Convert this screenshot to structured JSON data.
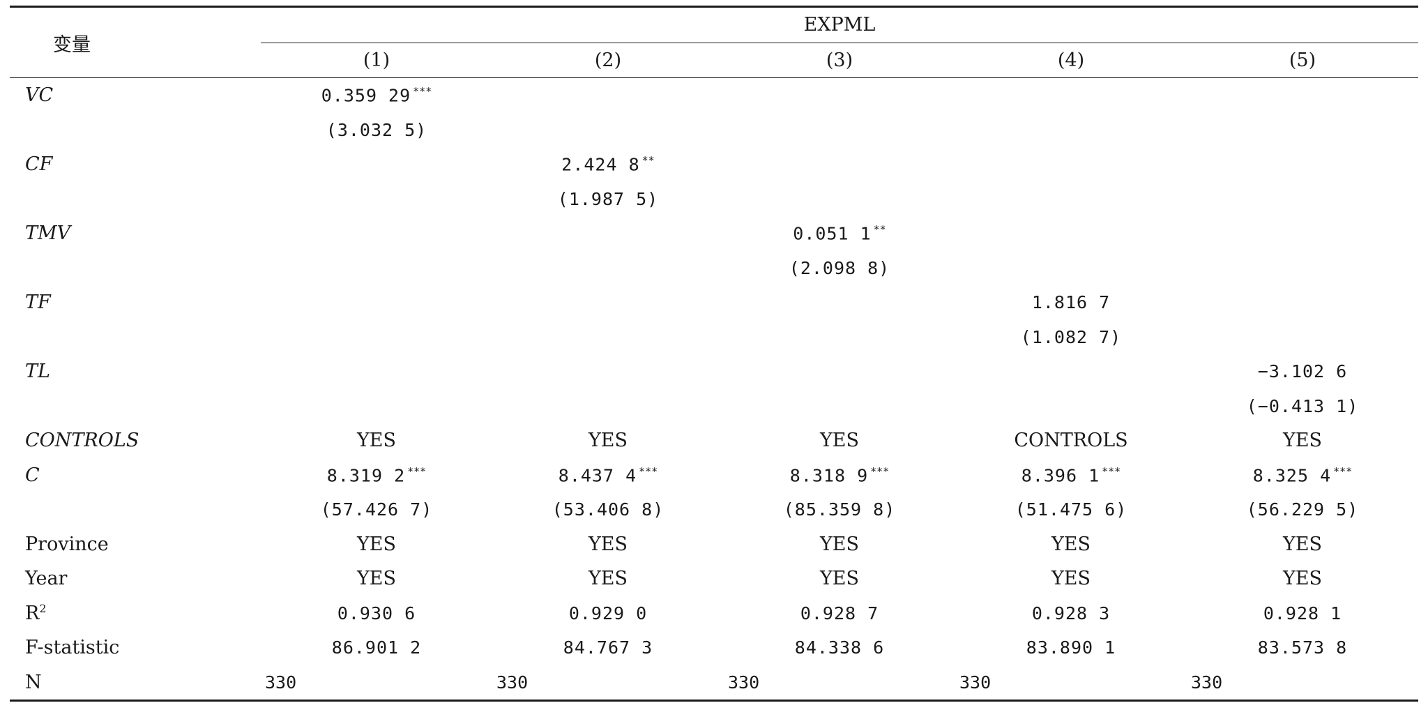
{
  "table": {
    "var_header": "变量",
    "group_header": "EXPML",
    "model_headers": [
      "(1)",
      "(2)",
      "(3)",
      "(4)",
      "(5)"
    ],
    "rows": [
      {
        "label": "VC",
        "italic": true,
        "cells": [
          "0.359 29",
          "",
          "",
          "",
          ""
        ],
        "stars": [
          "***",
          "",
          "",
          "",
          ""
        ],
        "kind": "num"
      },
      {
        "label": "",
        "italic": false,
        "cells": [
          "(3.032 5)",
          "",
          "",
          "",
          ""
        ],
        "stars": [
          "",
          "",
          "",
          "",
          ""
        ],
        "kind": "num"
      },
      {
        "label": "CF",
        "italic": true,
        "cells": [
          "",
          "2.424 8",
          "",
          "",
          ""
        ],
        "stars": [
          "",
          "**",
          "",
          "",
          ""
        ],
        "kind": "num"
      },
      {
        "label": "",
        "italic": false,
        "cells": [
          "",
          "(1.987 5)",
          "",
          "",
          ""
        ],
        "stars": [
          "",
          "",
          "",
          "",
          ""
        ],
        "kind": "num"
      },
      {
        "label": "TMV",
        "italic": true,
        "cells": [
          "",
          "",
          "0.051 1",
          "",
          ""
        ],
        "stars": [
          "",
          "",
          "**",
          "",
          ""
        ],
        "kind": "num"
      },
      {
        "label": "",
        "italic": false,
        "cells": [
          "",
          "",
          "(2.098 8)",
          "",
          ""
        ],
        "stars": [
          "",
          "",
          "",
          "",
          ""
        ],
        "kind": "num"
      },
      {
        "label": "TF",
        "italic": true,
        "cells": [
          "",
          "",
          "",
          "1.816 7",
          ""
        ],
        "stars": [
          "",
          "",
          "",
          "",
          ""
        ],
        "kind": "num"
      },
      {
        "label": "",
        "italic": false,
        "cells": [
          "",
          "",
          "",
          "(1.082 7)",
          ""
        ],
        "stars": [
          "",
          "",
          "",
          "",
          ""
        ],
        "kind": "num"
      },
      {
        "label": "TL",
        "italic": true,
        "cells": [
          "",
          "",
          "",
          "",
          "−3.102 6"
        ],
        "stars": [
          "",
          "",
          "",
          "",
          ""
        ],
        "kind": "num"
      },
      {
        "label": "",
        "italic": false,
        "cells": [
          "",
          "",
          "",
          "",
          "(−0.413 1)"
        ],
        "stars": [
          "",
          "",
          "",
          "",
          ""
        ],
        "kind": "num"
      },
      {
        "label": "CONTROLS",
        "italic": true,
        "cells": [
          "YES",
          "YES",
          "YES",
          "CONTROLS",
          "YES"
        ],
        "stars": [
          "",
          "",
          "",
          "",
          ""
        ],
        "kind": "word"
      },
      {
        "label": "C",
        "italic": true,
        "cells": [
          "8.319 2",
          "8.437 4",
          "8.318 9",
          "8.396 1",
          "8.325 4"
        ],
        "stars": [
          "***",
          "***",
          "***",
          "***",
          "***"
        ],
        "kind": "num"
      },
      {
        "label": "",
        "italic": false,
        "cells": [
          "(57.426 7)",
          "(53.406 8)",
          "(85.359 8)",
          "(51.475 6)",
          "(56.229 5)"
        ],
        "stars": [
          "",
          "",
          "",
          "",
          ""
        ],
        "kind": "num"
      },
      {
        "label": "Province",
        "italic": false,
        "cells": [
          "YES",
          "YES",
          "YES",
          "YES",
          "YES"
        ],
        "stars": [
          "",
          "",
          "",
          "",
          ""
        ],
        "kind": "word"
      },
      {
        "label": "Year",
        "italic": false,
        "cells": [
          "YES",
          "YES",
          "YES",
          "YES",
          "YES"
        ],
        "stars": [
          "",
          "",
          "",
          "",
          ""
        ],
        "kind": "word"
      },
      {
        "label": "R",
        "label_sup": "2",
        "italic": false,
        "cells": [
          "0.930 6",
          "0.929 0",
          "0.928 7",
          "0.928 3",
          "0.928 1"
        ],
        "stars": [
          "",
          "",
          "",
          "",
          ""
        ],
        "kind": "num"
      },
      {
        "label": "F-statistic",
        "italic": false,
        "cells": [
          "86.901 2",
          "84.767 3",
          "84.338 6",
          "83.890 1",
          "83.573 8"
        ],
        "stars": [
          "",
          "",
          "",
          "",
          ""
        ],
        "kind": "num"
      },
      {
        "label": "N",
        "italic": false,
        "cells": [
          "330",
          "330",
          "330",
          "330",
          "330"
        ],
        "stars": [
          "",
          "",
          "",
          "",
          ""
        ],
        "kind": "left-num"
      }
    ]
  }
}
